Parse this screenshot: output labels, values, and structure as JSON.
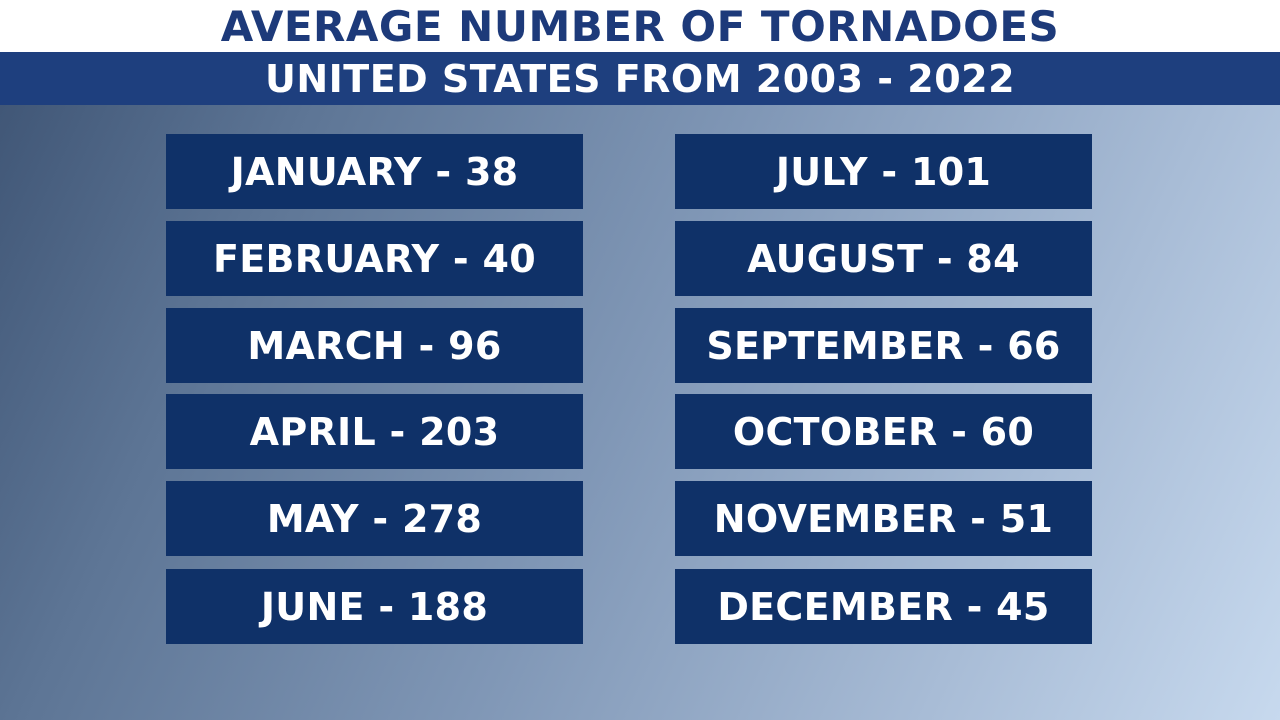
{
  "header": {
    "title": "AVERAGE NUMBER OF TORNADOES",
    "subtitle": "UNITED STATES FROM 2003 - 2022"
  },
  "months": [
    {
      "label": "JANUARY - 38",
      "month": "JANUARY",
      "value": 38
    },
    {
      "label": "FEBRUARY - 40",
      "month": "FEBRUARY",
      "value": 40
    },
    {
      "label": "MARCH - 96",
      "month": "MARCH",
      "value": 96
    },
    {
      "label": "APRIL - 203",
      "month": "APRIL",
      "value": 203
    },
    {
      "label": "MAY - 278",
      "month": "MAY",
      "value": 278
    },
    {
      "label": "JUNE - 188",
      "month": "JUNE",
      "value": 188
    },
    {
      "label": "JULY - 101",
      "month": "JULY",
      "value": 101
    },
    {
      "label": "AUGUST - 84",
      "month": "AUGUST",
      "value": 84
    },
    {
      "label": "SEPTEMBER - 66",
      "month": "SEPTEMBER",
      "value": 66
    },
    {
      "label": "OCTOBER - 60",
      "month": "OCTOBER",
      "value": 60
    },
    {
      "label": "NOVEMBER - 51",
      "month": "NOVEMBER",
      "value": 51
    },
    {
      "label": "DECEMBER - 45",
      "month": "DECEMBER",
      "value": 45
    }
  ],
  "colors": {
    "title_text": "#1d3a7a",
    "subtitle_band": "#1e3f7e",
    "box_fill": "#0f3168",
    "box_text": "#ffffff"
  }
}
